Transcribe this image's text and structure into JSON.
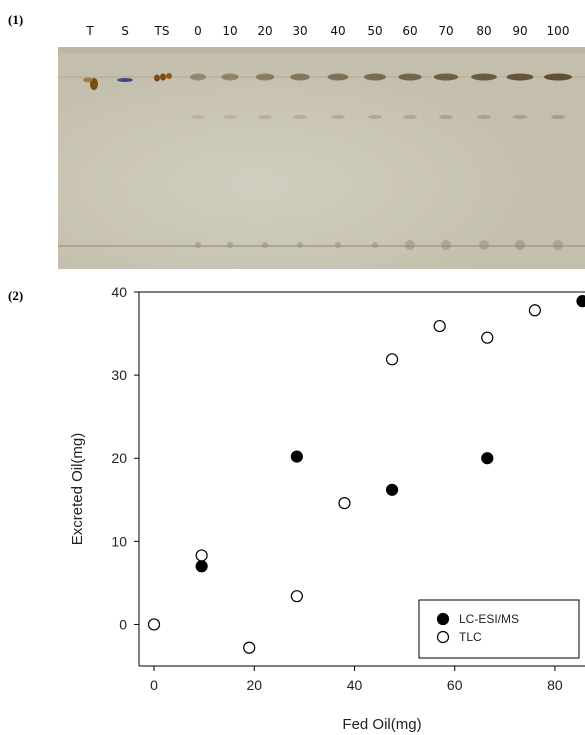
{
  "panels": {
    "p1_label": "(1)",
    "p2_label": "(2)"
  },
  "tlc_plate": {
    "lanes": [
      "T",
      "S",
      "TS",
      "0",
      "10",
      "20",
      "30",
      "40",
      "50",
      "60",
      "70",
      "80",
      "90",
      "100"
    ],
    "colors": {
      "plate": "#c4bfad",
      "plate_light": "#d2cebf",
      "band_dark": "#5b4a2c",
      "band_brown": "#7a4a10",
      "band_blue": "#3d4a86",
      "band_faint": "#9a9283"
    }
  },
  "chart_data": {
    "type": "scatter",
    "xlabel": "Fed Oil(mg)",
    "ylabel": "Excreted Oil(mg)",
    "xlim": [
      -3,
      86
    ],
    "ylim": [
      -5,
      40
    ],
    "xticks": [
      0,
      20,
      40,
      60,
      80
    ],
    "yticks": [
      0,
      10,
      20,
      30,
      40
    ],
    "legend_position": "bottom-right",
    "series": [
      {
        "name": "LC-ESI/MS",
        "marker": "filled-circle",
        "color": "#000000",
        "points": [
          [
            9.5,
            7.0
          ],
          [
            28.5,
            20.2
          ],
          [
            47.5,
            16.2
          ],
          [
            66.5,
            20.0
          ],
          [
            85.5,
            38.9
          ]
        ]
      },
      {
        "name": "TLC",
        "marker": "open-circle",
        "color": "#000000",
        "points": [
          [
            0,
            0
          ],
          [
            9.5,
            8.3
          ],
          [
            19,
            -2.8
          ],
          [
            28.5,
            3.4
          ],
          [
            38,
            14.6
          ],
          [
            47.5,
            31.9
          ],
          [
            57,
            35.9
          ],
          [
            66.5,
            34.5
          ],
          [
            76,
            37.8
          ]
        ]
      }
    ]
  }
}
